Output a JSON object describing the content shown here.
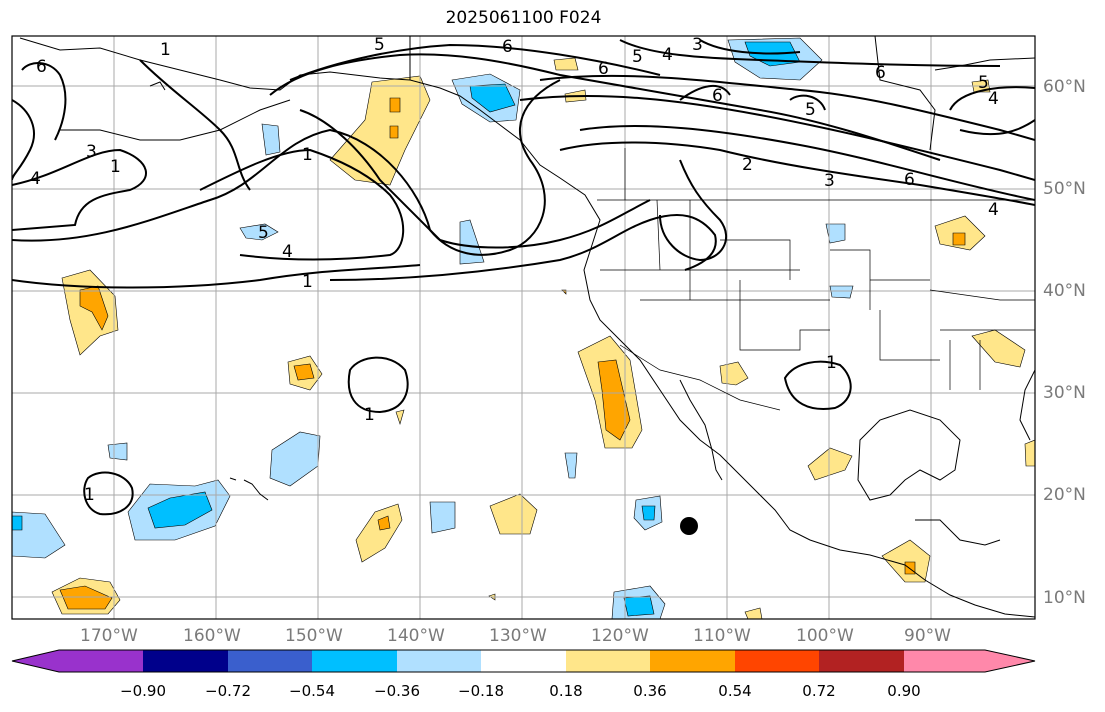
{
  "title": "2025061100 F024",
  "longitude_labels": [
    "170°W",
    "160°W",
    "150°W",
    "140°W",
    "130°W",
    "120°W",
    "110°W",
    "100°W",
    "90°W"
  ],
  "latitude_labels": [
    "60°N",
    "50°N",
    "40°N",
    "30°N",
    "20°N",
    "10°N"
  ],
  "colorbar": {
    "colors": [
      "#9932cc",
      "#00008b",
      "#3a5fcd",
      "#00bfff",
      "#b0e0ff",
      "#ffffff",
      "#ffe68a",
      "#ffa500",
      "#ff4500",
      "#b22222",
      "#ff88aa"
    ],
    "ticks": [
      "−0.90",
      "−0.72",
      "−0.54",
      "−0.36",
      "−0.18",
      "0.18",
      "0.36",
      "0.54",
      "0.72",
      "0.90"
    ]
  },
  "contour_labels": [
    {
      "text": "1"
    },
    {
      "text": "5"
    },
    {
      "text": "6"
    },
    {
      "text": "5"
    },
    {
      "text": "4"
    },
    {
      "text": "3"
    },
    {
      "text": "6"
    },
    {
      "text": "6"
    },
    {
      "text": "6"
    },
    {
      "text": "5"
    },
    {
      "text": "5"
    },
    {
      "text": "4"
    },
    {
      "text": "2"
    },
    {
      "text": "3"
    },
    {
      "text": "6"
    },
    {
      "text": "4"
    },
    {
      "text": "1"
    },
    {
      "text": "4"
    },
    {
      "text": "1"
    },
    {
      "text": "5"
    },
    {
      "text": "1"
    },
    {
      "text": "1"
    },
    {
      "text": "1"
    },
    {
      "text": "1"
    },
    {
      "text": "3"
    },
    {
      "text": "4"
    },
    {
      "text": "6"
    }
  ]
}
